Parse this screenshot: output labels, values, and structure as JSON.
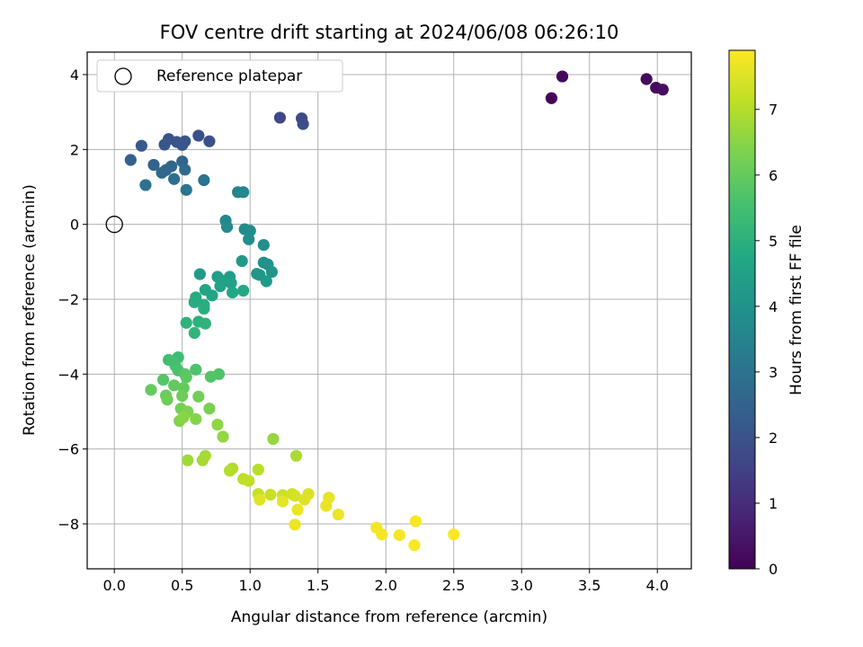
{
  "chart_data": {
    "type": "scatter",
    "title": "FOV centre drift starting at 2024/06/08 06:26:10",
    "xlabel": "Angular distance from reference (arcmin)",
    "ylabel": "Rotation from reference (arcmin)",
    "xlim": [
      -0.2,
      4.25
    ],
    "ylim": [
      -9.2,
      4.6
    ],
    "x_ticks": [
      0.0,
      0.5,
      1.0,
      1.5,
      2.0,
      2.5,
      3.0,
      3.5,
      4.0
    ],
    "x_tick_labels": [
      "0.0",
      "0.5",
      "1.0",
      "1.5",
      "2.0",
      "2.5",
      "3.0",
      "3.5",
      "4.0"
    ],
    "y_ticks": [
      -8,
      -6,
      -4,
      -2,
      0,
      2,
      4
    ],
    "y_tick_labels": [
      "−8",
      "−6",
      "−4",
      "−2",
      "0",
      "2",
      "4"
    ],
    "grid": true,
    "legend": {
      "position": "top-left",
      "entries": [
        "Reference platepar"
      ]
    },
    "reference_point": {
      "x": 0.0,
      "y": 0.0
    },
    "colorbar": {
      "label": "Hours from first FF file",
      "range": [
        0,
        7.9
      ],
      "ticks": [
        0,
        1,
        2,
        3,
        4,
        5,
        6,
        7
      ],
      "colormap": "viridis"
    },
    "points": [
      [
        3.22,
        3.37,
        0.1
      ],
      [
        3.3,
        3.95,
        0.15
      ],
      [
        3.92,
        3.88,
        0.2
      ],
      [
        3.99,
        3.65,
        0.25
      ],
      [
        4.04,
        3.6,
        0.3
      ],
      [
        1.22,
        2.85,
        1.7
      ],
      [
        1.38,
        2.83,
        1.75
      ],
      [
        1.39,
        2.68,
        1.8
      ],
      [
        0.62,
        2.37,
        1.9
      ],
      [
        0.7,
        2.22,
        1.95
      ],
      [
        0.4,
        2.28,
        2.0
      ],
      [
        0.46,
        2.2,
        2.05
      ],
      [
        0.5,
        2.12,
        2.1
      ],
      [
        0.52,
        2.22,
        2.1
      ],
      [
        0.37,
        2.13,
        2.15
      ],
      [
        0.2,
        2.1,
        2.2
      ],
      [
        0.12,
        1.72,
        2.45
      ],
      [
        0.29,
        1.59,
        2.5
      ],
      [
        0.5,
        1.68,
        2.55
      ],
      [
        0.42,
        1.55,
        2.6
      ],
      [
        0.38,
        1.45,
        2.65
      ],
      [
        0.35,
        1.38,
        2.7
      ],
      [
        0.52,
        1.46,
        2.75
      ],
      [
        0.44,
        1.21,
        2.85
      ],
      [
        0.23,
        1.05,
        2.9
      ],
      [
        0.66,
        1.18,
        3.0
      ],
      [
        0.53,
        0.92,
        3.05
      ],
      [
        0.91,
        0.86,
        3.55
      ],
      [
        0.95,
        0.86,
        3.6
      ],
      [
        0.82,
        0.1,
        3.7
      ],
      [
        0.83,
        -0.07,
        3.75
      ],
      [
        0.96,
        -0.13,
        3.8
      ],
      [
        1.0,
        -0.17,
        3.8
      ],
      [
        0.99,
        -0.4,
        3.85
      ],
      [
        1.1,
        -0.55,
        3.9
      ],
      [
        1.1,
        -1.02,
        3.95
      ],
      [
        1.13,
        -1.07,
        4.0
      ],
      [
        1.16,
        -1.27,
        4.05
      ],
      [
        1.05,
        -1.32,
        4.1
      ],
      [
        1.07,
        -1.35,
        4.15
      ],
      [
        0.94,
        -0.98,
        4.2
      ],
      [
        1.12,
        -1.52,
        4.25
      ],
      [
        0.63,
        -1.33,
        4.3
      ],
      [
        0.76,
        -1.4,
        4.35
      ],
      [
        0.85,
        -1.4,
        4.4
      ],
      [
        0.79,
        -1.5,
        4.45
      ],
      [
        0.86,
        -1.57,
        4.5
      ],
      [
        0.78,
        -1.65,
        4.55
      ],
      [
        0.67,
        -1.75,
        4.6
      ],
      [
        0.72,
        -1.9,
        4.65
      ],
      [
        0.87,
        -1.82,
        4.7
      ],
      [
        0.95,
        -1.77,
        4.75
      ],
      [
        0.6,
        -1.95,
        4.8
      ],
      [
        0.59,
        -2.08,
        4.85
      ],
      [
        0.66,
        -2.15,
        4.9
      ],
      [
        0.66,
        -2.25,
        4.95
      ],
      [
        0.62,
        -2.6,
        5.0
      ],
      [
        0.53,
        -2.63,
        5.05
      ],
      [
        0.67,
        -2.65,
        5.1
      ],
      [
        0.59,
        -2.9,
        5.15
      ],
      [
        0.47,
        -3.55,
        5.4
      ],
      [
        0.4,
        -3.62,
        5.45
      ],
      [
        0.44,
        -3.68,
        5.5
      ],
      [
        0.45,
        -3.78,
        5.55
      ],
      [
        0.47,
        -3.9,
        5.6
      ],
      [
        0.6,
        -3.88,
        5.65
      ],
      [
        0.77,
        -4.0,
        5.7
      ],
      [
        0.71,
        -4.07,
        5.75
      ],
      [
        0.36,
        -4.15,
        5.8
      ],
      [
        0.52,
        -4.0,
        5.85
      ],
      [
        0.53,
        -4.08,
        5.9
      ],
      [
        0.44,
        -4.3,
        5.95
      ],
      [
        0.51,
        -4.37,
        6.0
      ],
      [
        0.27,
        -4.42,
        6.0
      ],
      [
        0.38,
        -4.57,
        6.05
      ],
      [
        0.5,
        -4.58,
        6.1
      ],
      [
        0.39,
        -4.68,
        6.15
      ],
      [
        0.62,
        -4.6,
        6.2
      ],
      [
        0.49,
        -4.92,
        6.25
      ],
      [
        0.7,
        -4.92,
        6.3
      ],
      [
        0.54,
        -5.0,
        6.35
      ],
      [
        0.48,
        -5.25,
        6.4
      ],
      [
        0.6,
        -5.2,
        6.45
      ],
      [
        0.51,
        -5.15,
        6.5
      ],
      [
        0.76,
        -5.35,
        6.55
      ],
      [
        0.8,
        -5.67,
        6.6
      ],
      [
        1.17,
        -5.73,
        6.65
      ],
      [
        0.54,
        -6.3,
        6.75
      ],
      [
        0.65,
        -6.3,
        6.8
      ],
      [
        0.67,
        -6.18,
        6.85
      ],
      [
        1.34,
        -6.18,
        6.9
      ],
      [
        0.87,
        -6.52,
        6.95
      ],
      [
        0.85,
        -6.58,
        7.0
      ],
      [
        1.06,
        -6.55,
        7.05
      ],
      [
        0.95,
        -6.8,
        7.1
      ],
      [
        0.99,
        -6.85,
        7.15
      ],
      [
        1.06,
        -7.2,
        7.2
      ],
      [
        1.15,
        -7.22,
        7.25
      ],
      [
        1.24,
        -7.23,
        7.3
      ],
      [
        1.31,
        -7.2,
        7.35
      ],
      [
        1.33,
        -7.25,
        7.4
      ],
      [
        1.43,
        -7.2,
        7.45
      ],
      [
        1.4,
        -7.35,
        7.5
      ],
      [
        1.07,
        -7.35,
        7.55
      ],
      [
        1.24,
        -7.4,
        7.6
      ],
      [
        1.58,
        -7.3,
        7.62
      ],
      [
        1.56,
        -7.52,
        7.65
      ],
      [
        1.35,
        -7.62,
        7.68
      ],
      [
        1.65,
        -7.75,
        7.7
      ],
      [
        1.33,
        -8.02,
        7.72
      ],
      [
        1.93,
        -8.1,
        7.78
      ],
      [
        1.97,
        -8.28,
        7.8
      ],
      [
        2.1,
        -8.3,
        7.82
      ],
      [
        2.22,
        -7.93,
        7.84
      ],
      [
        2.21,
        -8.57,
        7.86
      ],
      [
        2.5,
        -8.28,
        7.88
      ]
    ]
  }
}
